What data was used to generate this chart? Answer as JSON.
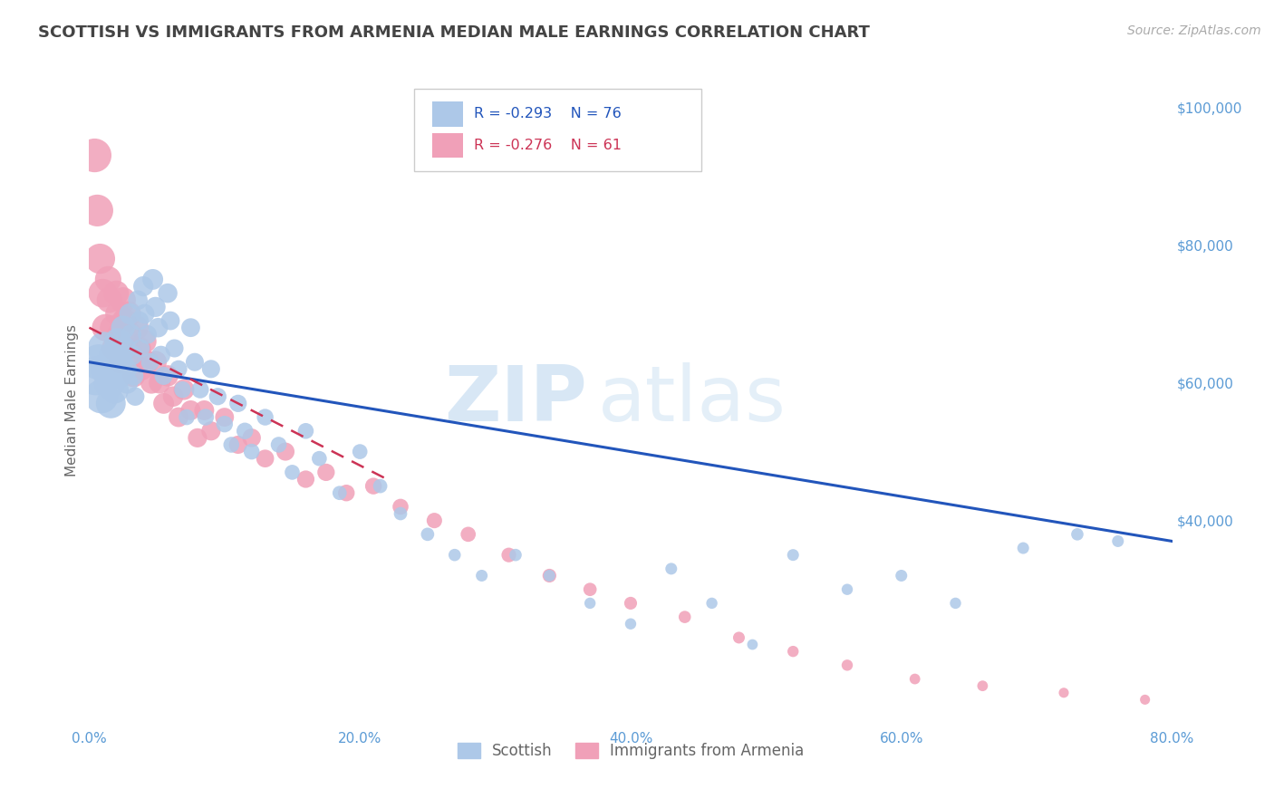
{
  "title": "SCOTTISH VS IMMIGRANTS FROM ARMENIA MEDIAN MALE EARNINGS CORRELATION CHART",
  "source": "Source: ZipAtlas.com",
  "ylabel": "Median Male Earnings",
  "xlim": [
    0.0,
    0.8
  ],
  "ylim": [
    10000,
    105000
  ],
  "xtick_labels": [
    "0.0%",
    "20.0%",
    "40.0%",
    "60.0%",
    "80.0%"
  ],
  "xticks": [
    0.0,
    0.2,
    0.4,
    0.6,
    0.8
  ],
  "ytick_vals": [
    20000,
    40000,
    60000,
    80000,
    100000
  ],
  "ytick_labels": [
    "",
    "$40,000",
    "$60,000",
    "$80,000",
    "$100,000"
  ],
  "scottish_color": "#adc8e8",
  "armenia_color": "#f0a0b8",
  "scottish_line_color": "#2255bb",
  "armenia_line_color": "#cc3355",
  "scottish_R": -0.293,
  "scottish_N": 76,
  "armenia_R": -0.276,
  "armenia_N": 61,
  "legend_label_scottish": "Scottish",
  "legend_label_armenia": "Immigrants from Armenia",
  "watermark_zip": "ZIP",
  "watermark_atlas": "atlas",
  "axis_color": "#5b9bd5",
  "grid_color": "#cccccc",
  "title_color": "#444444",
  "scottish_x": [
    0.005,
    0.007,
    0.009,
    0.011,
    0.013,
    0.015,
    0.016,
    0.018,
    0.019,
    0.021,
    0.022,
    0.023,
    0.025,
    0.026,
    0.027,
    0.028,
    0.03,
    0.031,
    0.032,
    0.033,
    0.034,
    0.036,
    0.037,
    0.038,
    0.04,
    0.041,
    0.043,
    0.045,
    0.047,
    0.049,
    0.051,
    0.053,
    0.055,
    0.058,
    0.06,
    0.063,
    0.066,
    0.069,
    0.072,
    0.075,
    0.078,
    0.082,
    0.086,
    0.09,
    0.095,
    0.1,
    0.105,
    0.11,
    0.115,
    0.12,
    0.13,
    0.14,
    0.15,
    0.16,
    0.17,
    0.185,
    0.2,
    0.215,
    0.23,
    0.25,
    0.27,
    0.29,
    0.315,
    0.34,
    0.37,
    0.4,
    0.43,
    0.46,
    0.49,
    0.52,
    0.56,
    0.6,
    0.64,
    0.69,
    0.73,
    0.76
  ],
  "scottish_y": [
    61000,
    63000,
    58000,
    65000,
    62000,
    60000,
    57000,
    64000,
    59000,
    66000,
    61000,
    63000,
    68000,
    65000,
    62000,
    60000,
    70000,
    67000,
    64000,
    61000,
    58000,
    72000,
    69000,
    65000,
    74000,
    70000,
    67000,
    63000,
    75000,
    71000,
    68000,
    64000,
    61000,
    73000,
    69000,
    65000,
    62000,
    59000,
    55000,
    68000,
    63000,
    59000,
    55000,
    62000,
    58000,
    54000,
    51000,
    57000,
    53000,
    50000,
    55000,
    51000,
    47000,
    53000,
    49000,
    44000,
    50000,
    45000,
    41000,
    38000,
    35000,
    32000,
    35000,
    32000,
    28000,
    25000,
    33000,
    28000,
    22000,
    35000,
    30000,
    32000,
    28000,
    36000,
    38000,
    37000
  ],
  "scottish_size": [
    120,
    100,
    90,
    85,
    80,
    75,
    70,
    65,
    60,
    55,
    50,
    48,
    45,
    42,
    40,
    38,
    35,
    33,
    31,
    29,
    27,
    30,
    28,
    26,
    32,
    30,
    28,
    26,
    34,
    32,
    30,
    28,
    26,
    30,
    28,
    26,
    24,
    22,
    20,
    28,
    26,
    24,
    22,
    26,
    24,
    22,
    20,
    24,
    22,
    20,
    22,
    20,
    18,
    20,
    18,
    16,
    18,
    16,
    14,
    14,
    12,
    11,
    12,
    11,
    10,
    10,
    11,
    10,
    9,
    11,
    10,
    11,
    10,
    11,
    12,
    11
  ],
  "armenia_x": [
    0.004,
    0.006,
    0.008,
    0.01,
    0.012,
    0.014,
    0.015,
    0.017,
    0.018,
    0.02,
    0.021,
    0.022,
    0.023,
    0.025,
    0.026,
    0.027,
    0.029,
    0.03,
    0.032,
    0.033,
    0.035,
    0.037,
    0.039,
    0.041,
    0.043,
    0.046,
    0.049,
    0.052,
    0.055,
    0.058,
    0.062,
    0.066,
    0.07,
    0.075,
    0.08,
    0.085,
    0.09,
    0.1,
    0.11,
    0.12,
    0.13,
    0.145,
    0.16,
    0.175,
    0.19,
    0.21,
    0.23,
    0.255,
    0.28,
    0.31,
    0.34,
    0.37,
    0.4,
    0.44,
    0.48,
    0.52,
    0.56,
    0.61,
    0.66,
    0.72,
    0.78
  ],
  "armenia_y": [
    93000,
    85000,
    78000,
    73000,
    68000,
    75000,
    72000,
    68000,
    65000,
    73000,
    70000,
    67000,
    63000,
    72000,
    69000,
    65000,
    70000,
    67000,
    64000,
    61000,
    68000,
    65000,
    62000,
    66000,
    63000,
    60000,
    63000,
    60000,
    57000,
    61000,
    58000,
    55000,
    59000,
    56000,
    52000,
    56000,
    53000,
    55000,
    51000,
    52000,
    49000,
    50000,
    46000,
    47000,
    44000,
    45000,
    42000,
    40000,
    38000,
    35000,
    32000,
    30000,
    28000,
    26000,
    23000,
    21000,
    19000,
    17000,
    16000,
    15000,
    14000
  ],
  "armenia_size": [
    90,
    80,
    72,
    65,
    58,
    55,
    52,
    48,
    45,
    50,
    48,
    45,
    42,
    52,
    49,
    46,
    50,
    47,
    44,
    41,
    46,
    43,
    40,
    44,
    41,
    38,
    40,
    37,
    34,
    36,
    33,
    31,
    34,
    31,
    29,
    31,
    29,
    28,
    26,
    27,
    25,
    26,
    24,
    24,
    22,
    22,
    20,
    19,
    18,
    17,
    15,
    14,
    13,
    12,
    11,
    10,
    10,
    9,
    9,
    8,
    8
  ],
  "scottish_line_x": [
    0.0,
    0.8
  ],
  "scottish_line_y": [
    63000,
    37000
  ],
  "armenia_line_x": [
    0.0,
    0.22
  ],
  "armenia_line_y": [
    68000,
    46000
  ]
}
